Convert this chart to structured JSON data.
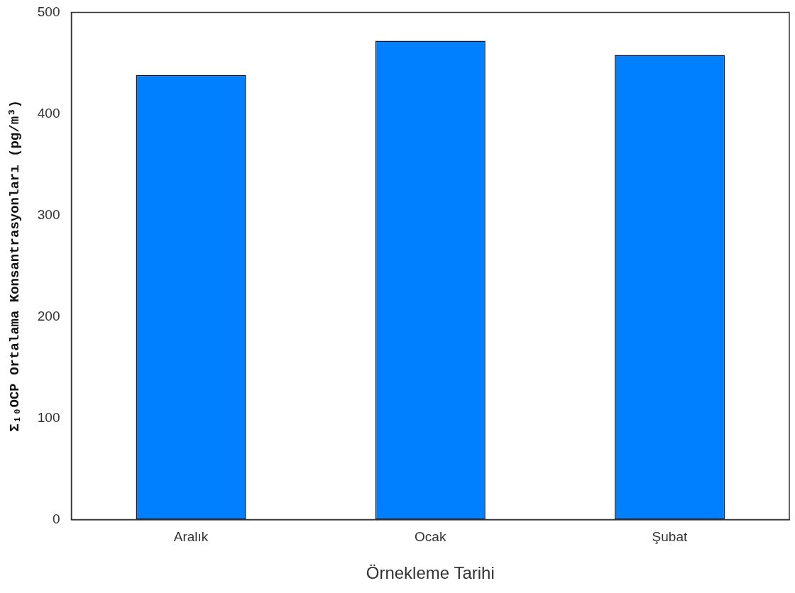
{
  "chart_data": {
    "type": "bar",
    "xlabel": "Örnekleme Tarihi",
    "ylabel": "Σ₁₀OCP Ortalama Konsantrasyonları (pg/m³)",
    "categories": [
      "Aralık",
      "Ocak",
      "Şubat"
    ],
    "values": [
      438,
      472,
      458
    ],
    "color": "#0080ff",
    "ylim": [
      0,
      500
    ],
    "yticks": [
      0,
      100,
      200,
      300,
      400,
      500
    ],
    "grid": false,
    "legend": false
  }
}
